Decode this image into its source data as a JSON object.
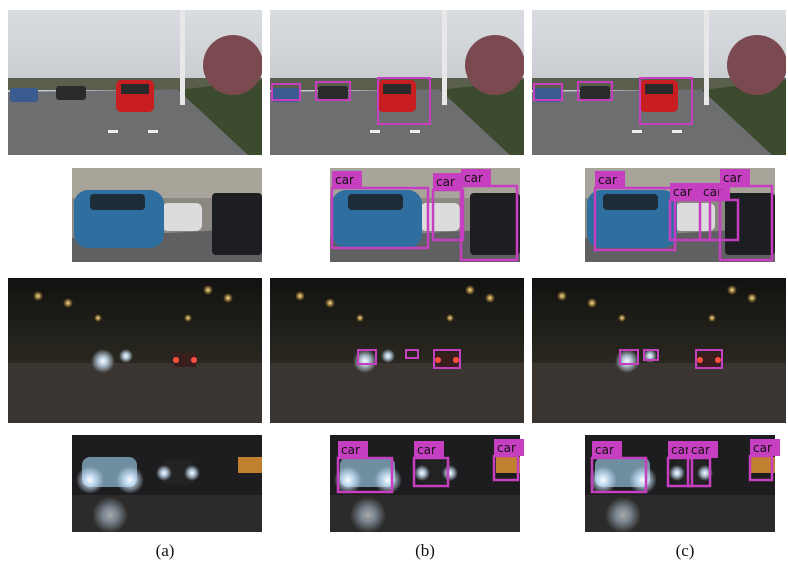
{
  "captions": [
    "(a)",
    "(b)",
    "(c)"
  ],
  "detections": {
    "day_zoom_b": [
      "car",
      "car",
      "car"
    ],
    "day_zoom_c": [
      "car",
      "car",
      "car",
      "car"
    ],
    "night_zoom_b": [
      "car",
      "car",
      "car"
    ],
    "night_zoom_c": [
      "car",
      "car",
      "car",
      "car"
    ]
  }
}
